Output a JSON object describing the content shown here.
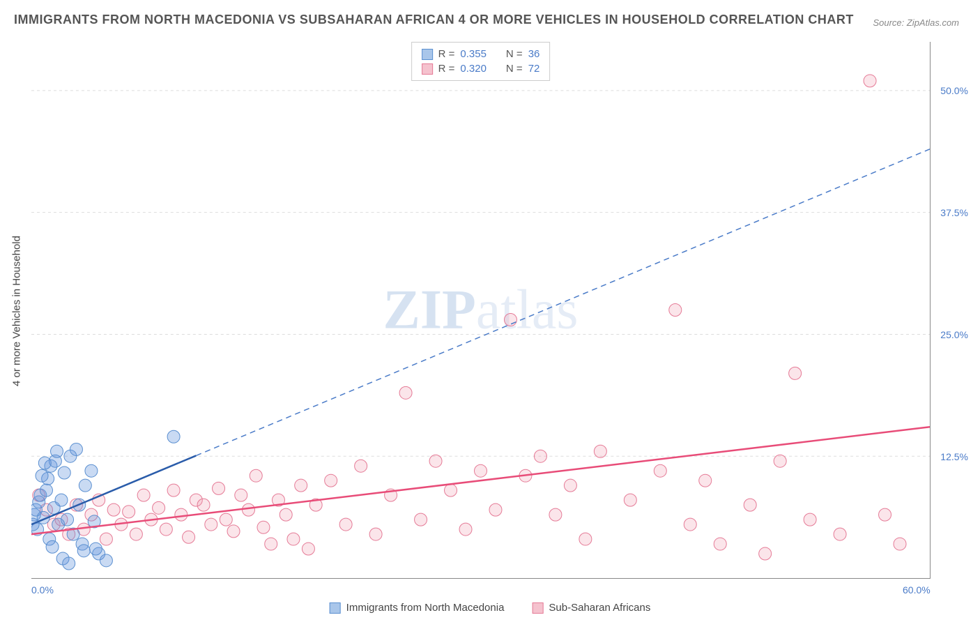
{
  "title": "IMMIGRANTS FROM NORTH MACEDONIA VS SUBSAHARAN AFRICAN 4 OR MORE VEHICLES IN HOUSEHOLD CORRELATION CHART",
  "source": "Source: ZipAtlas.com",
  "watermark_zip": "ZIP",
  "watermark_atlas": "atlas",
  "y_axis_label": "4 or more Vehicles in Household",
  "chart": {
    "type": "scatter",
    "xlim": [
      0,
      60
    ],
    "ylim": [
      0,
      55
    ],
    "x_ticks": [
      {
        "v": 0,
        "label": "0.0%"
      },
      {
        "v": 60,
        "label": "60.0%"
      }
    ],
    "y_ticks": [
      {
        "v": 12.5,
        "label": "12.5%"
      },
      {
        "v": 25.0,
        "label": "25.0%"
      },
      {
        "v": 37.5,
        "label": "37.5%"
      },
      {
        "v": 50.0,
        "label": "50.0%"
      }
    ],
    "grid_color": "#dddddd",
    "background_color": "#ffffff",
    "marker_radius": 9,
    "series": [
      {
        "name": "Immigrants from North Macedonia",
        "color_fill": "rgba(100,150,220,0.35)",
        "color_stroke": "#5a8fd0",
        "swatch_fill": "#a9c6ea",
        "swatch_border": "#5a8fd0",
        "R": "0.355",
        "N": "36",
        "trend": {
          "x1": 0,
          "y1": 5.5,
          "x2": 60,
          "y2": 44,
          "solid_until_x": 11
        },
        "points": [
          [
            0.2,
            6.5
          ],
          [
            0.3,
            7.0
          ],
          [
            0.5,
            7.8
          ],
          [
            0.4,
            5.0
          ],
          [
            0.6,
            8.5
          ],
          [
            0.8,
            6.2
          ],
          [
            1.0,
            9.0
          ],
          [
            1.1,
            10.2
          ],
          [
            1.3,
            11.5
          ],
          [
            1.5,
            7.2
          ],
          [
            1.6,
            12.0
          ],
          [
            1.8,
            5.5
          ],
          [
            2.0,
            8.0
          ],
          [
            2.2,
            10.8
          ],
          [
            2.4,
            6.0
          ],
          [
            2.6,
            12.5
          ],
          [
            2.8,
            4.5
          ],
          [
            3.0,
            13.2
          ],
          [
            3.2,
            7.5
          ],
          [
            3.4,
            3.5
          ],
          [
            3.6,
            9.5
          ],
          [
            4.0,
            11.0
          ],
          [
            4.2,
            5.8
          ],
          [
            4.5,
            2.5
          ],
          [
            1.2,
            4.0
          ],
          [
            1.4,
            3.2
          ],
          [
            2.1,
            2.0
          ],
          [
            2.5,
            1.5
          ],
          [
            0.7,
            10.5
          ],
          [
            0.9,
            11.8
          ],
          [
            1.7,
            13.0
          ],
          [
            3.5,
            2.8
          ],
          [
            4.3,
            3.0
          ],
          [
            5.0,
            1.8
          ],
          [
            9.5,
            14.5
          ],
          [
            0.1,
            5.5
          ]
        ]
      },
      {
        "name": "Sub-Saharan Africans",
        "color_fill": "rgba(240,150,170,0.25)",
        "color_stroke": "#e57a96",
        "swatch_fill": "#f5c2ce",
        "swatch_border": "#e57a96",
        "R": "0.320",
        "N": "72",
        "trend": {
          "x1": 0,
          "y1": 4.5,
          "x2": 60,
          "y2": 15.5
        },
        "points": [
          [
            0.5,
            8.5
          ],
          [
            1.0,
            7.0
          ],
          [
            1.5,
            5.5
          ],
          [
            2.0,
            6.0
          ],
          [
            2.5,
            4.5
          ],
          [
            3.0,
            7.5
          ],
          [
            3.5,
            5.0
          ],
          [
            4.0,
            6.5
          ],
          [
            4.5,
            8.0
          ],
          [
            5.0,
            4.0
          ],
          [
            5.5,
            7.0
          ],
          [
            6.0,
            5.5
          ],
          [
            6.5,
            6.8
          ],
          [
            7.0,
            4.5
          ],
          [
            7.5,
            8.5
          ],
          [
            8.0,
            6.0
          ],
          [
            8.5,
            7.2
          ],
          [
            9.0,
            5.0
          ],
          [
            9.5,
            9.0
          ],
          [
            10.0,
            6.5
          ],
          [
            10.5,
            4.2
          ],
          [
            11.0,
            8.0
          ],
          [
            11.5,
            7.5
          ],
          [
            12.0,
            5.5
          ],
          [
            12.5,
            9.2
          ],
          [
            13.0,
            6.0
          ],
          [
            13.5,
            4.8
          ],
          [
            14.0,
            8.5
          ],
          [
            14.5,
            7.0
          ],
          [
            15.0,
            10.5
          ],
          [
            15.5,
            5.2
          ],
          [
            16.0,
            3.5
          ],
          [
            16.5,
            8.0
          ],
          [
            17.0,
            6.5
          ],
          [
            17.5,
            4.0
          ],
          [
            18.0,
            9.5
          ],
          [
            18.5,
            3.0
          ],
          [
            19.0,
            7.5
          ],
          [
            20.0,
            10.0
          ],
          [
            21.0,
            5.5
          ],
          [
            22.0,
            11.5
          ],
          [
            23.0,
            4.5
          ],
          [
            24.0,
            8.5
          ],
          [
            25.0,
            19.0
          ],
          [
            26.0,
            6.0
          ],
          [
            27.0,
            12.0
          ],
          [
            28.0,
            9.0
          ],
          [
            29.0,
            5.0
          ],
          [
            30.0,
            11.0
          ],
          [
            31.0,
            7.0
          ],
          [
            32.0,
            26.5
          ],
          [
            33.0,
            10.5
          ],
          [
            34.0,
            12.5
          ],
          [
            35.0,
            6.5
          ],
          [
            36.0,
            9.5
          ],
          [
            37.0,
            4.0
          ],
          [
            38.0,
            13.0
          ],
          [
            40.0,
            8.0
          ],
          [
            42.0,
            11.0
          ],
          [
            43.0,
            27.5
          ],
          [
            44.0,
            5.5
          ],
          [
            45.0,
            10.0
          ],
          [
            46.0,
            3.5
          ],
          [
            48.0,
            7.5
          ],
          [
            49.0,
            2.5
          ],
          [
            50.0,
            12.0
          ],
          [
            51.0,
            21.0
          ],
          [
            52.0,
            6.0
          ],
          [
            54.0,
            4.5
          ],
          [
            56.0,
            51.0
          ],
          [
            57.0,
            6.5
          ],
          [
            58.0,
            3.5
          ]
        ]
      }
    ]
  },
  "legend": {
    "r_label": "R =",
    "n_label": "N ="
  }
}
